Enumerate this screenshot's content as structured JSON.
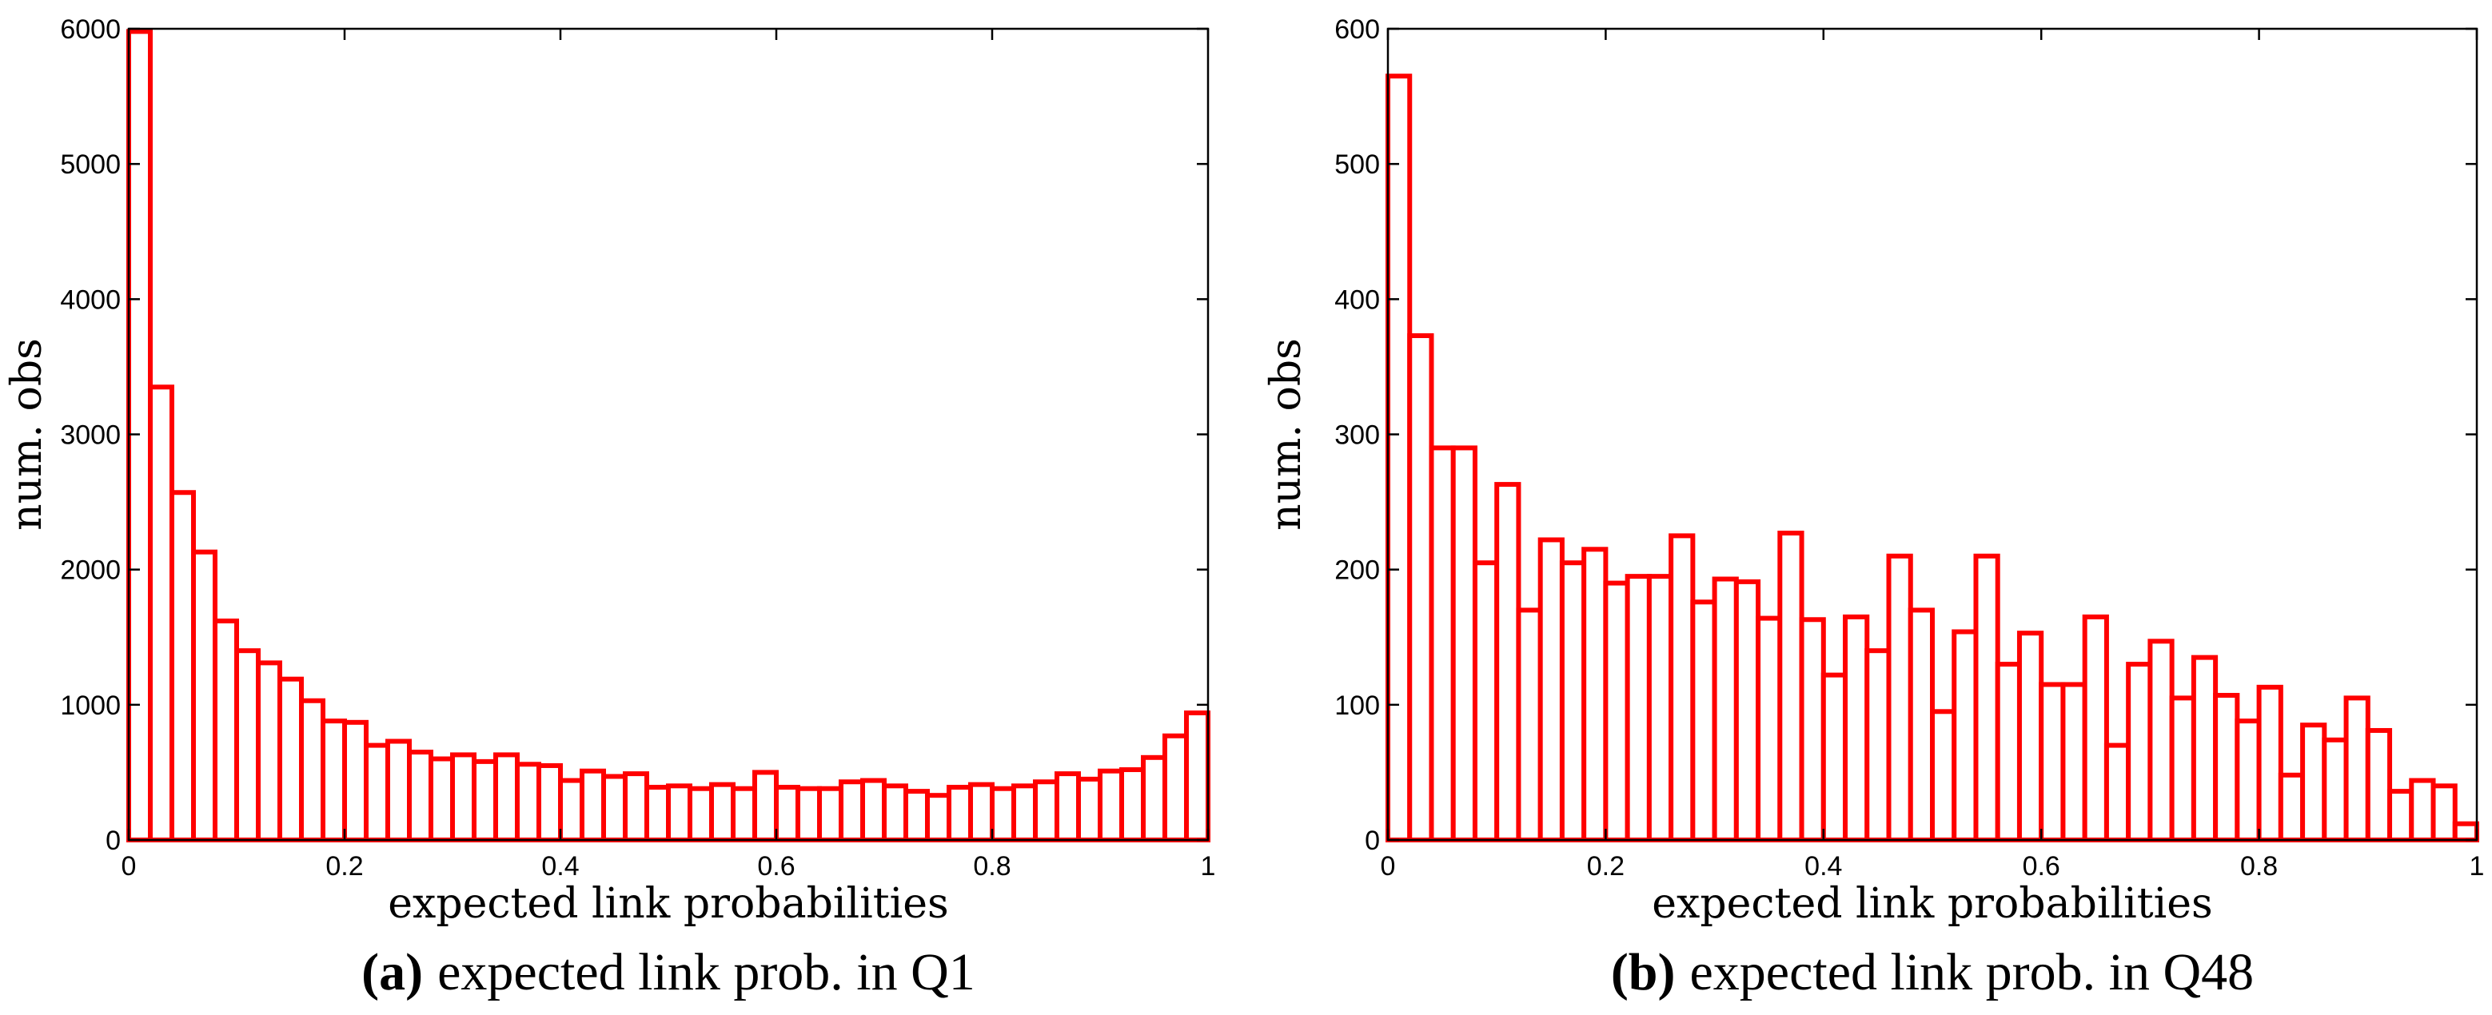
{
  "chart_data": [
    {
      "type": "bar",
      "panel": "a",
      "caption_tag": "(a)",
      "caption_text": "expected link prob. in Q1",
      "xlabel": "expected link probabilities",
      "ylabel": "num. obs",
      "xlim": [
        0,
        1
      ],
      "ylim": [
        0,
        6000
      ],
      "xticks": [
        "0",
        "0.2",
        "0.4",
        "0.6",
        "0.8",
        "1"
      ],
      "yticks": [
        "0",
        "1000",
        "2000",
        "3000",
        "4000",
        "5000",
        "6000"
      ],
      "bin_width": 0.02,
      "values": [
        5980,
        3350,
        2570,
        2130,
        1620,
        1400,
        1310,
        1190,
        1030,
        880,
        870,
        700,
        730,
        650,
        600,
        630,
        580,
        630,
        560,
        550,
        440,
        510,
        470,
        490,
        390,
        400,
        380,
        410,
        380,
        500,
        390,
        380,
        380,
        430,
        440,
        400,
        360,
        330,
        390,
        410,
        380,
        400,
        430,
        490,
        450,
        510,
        520,
        610,
        770,
        940
      ],
      "series_color": "#ff0000"
    },
    {
      "type": "bar",
      "panel": "b",
      "caption_tag": "(b)",
      "caption_text": "expected link prob. in Q48",
      "xlabel": "expected link probabilities",
      "ylabel": "num. obs",
      "xlim": [
        0,
        1
      ],
      "ylim": [
        0,
        600
      ],
      "xticks": [
        "0",
        "0.2",
        "0.4",
        "0.6",
        "0.8",
        "1"
      ],
      "yticks": [
        "0",
        "100",
        "200",
        "300",
        "400",
        "500",
        "600"
      ],
      "bin_width": 0.02,
      "values": [
        565,
        373,
        290,
        290,
        205,
        263,
        170,
        222,
        205,
        215,
        190,
        195,
        195,
        225,
        176,
        193,
        191,
        164,
        227,
        163,
        122,
        165,
        140,
        210,
        170,
        95,
        154,
        210,
        130,
        153,
        115,
        115,
        165,
        70,
        130,
        147,
        105,
        135,
        107,
        88,
        113,
        48,
        85,
        74,
        105,
        81,
        36,
        44,
        40,
        12
      ],
      "series_color": "#ff0000"
    }
  ]
}
